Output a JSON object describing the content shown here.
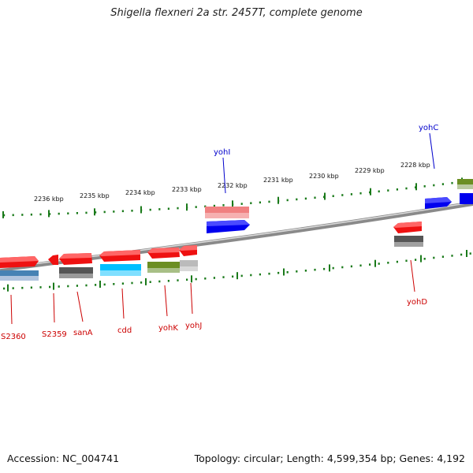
{
  "title": "Shigella flexneri 2a str. 2457T, complete genome",
  "footer": {
    "accession": "Accession: NC_004741",
    "summary": "Topology: circular; Length: 4,599,354 bp; Genes: 4,192"
  },
  "colors": {
    "red": "#ee1111",
    "blue": "#0000ee",
    "pink": "#f08080",
    "olive": "#6b8e23",
    "cyan": "#00bfff",
    "steel": "#4682b4",
    "dark_gray": "#555555",
    "light_gray": "#bbbbbb",
    "tick_green": "#1a7a1a",
    "label_red": "#cc0000",
    "label_blue": "#0000cc"
  },
  "scale_labels": [
    "2236 kbp",
    "2235 kbp",
    "2234 kbp",
    "2233 kbp",
    "2232 kbp",
    "2231 kbp",
    "2230 kbp",
    "2229 kbp",
    "2228 kbp"
  ],
  "gene_labels": [
    {
      "text": "S2360",
      "color": "red"
    },
    {
      "text": "S2359",
      "color": "red"
    },
    {
      "text": "sanA",
      "color": "red"
    },
    {
      "text": "cdd",
      "color": "red"
    },
    {
      "text": "yohK",
      "color": "red"
    },
    {
      "text": "yohJ",
      "color": "red"
    },
    {
      "text": "yohI",
      "color": "blue"
    },
    {
      "text": "yohD",
      "color": "red"
    },
    {
      "text": "yohC",
      "color": "blue"
    }
  ]
}
